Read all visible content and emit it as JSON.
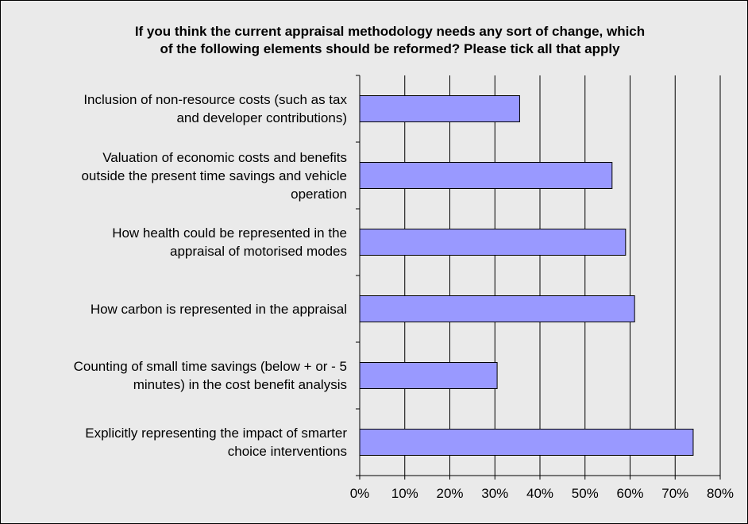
{
  "chart_data": {
    "type": "bar",
    "orientation": "horizontal",
    "title": [
      "If you think the current appraisal methodology needs any sort of change, which",
      "of the following elements should be reformed? Please tick all that apply"
    ],
    "categories": [
      [
        "Inclusion of non-resource costs (such as tax",
        "and developer contributions)"
      ],
      [
        "Valuation of economic costs and benefits",
        "outside the present time savings and vehicle",
        "operation"
      ],
      [
        "How health could be represented in the",
        "appraisal of motorised modes"
      ],
      [
        "How carbon is represented in the appraisal"
      ],
      [
        "Counting of small time savings (below + or - 5",
        "minutes) in the cost benefit analysis"
      ],
      [
        "Explicitly representing the impact of smarter",
        "choice interventions"
      ]
    ],
    "values": [
      35.5,
      56,
      59,
      61,
      30.5,
      74
    ],
    "x_ticks": [
      "0%",
      "10%",
      "20%",
      "30%",
      "40%",
      "50%",
      "60%",
      "70%",
      "80%"
    ],
    "xlim": [
      0,
      80
    ],
    "grid": "vertical",
    "bar_color": "#9999ff",
    "bar_border": "#000000",
    "background": "#eaeaea"
  }
}
